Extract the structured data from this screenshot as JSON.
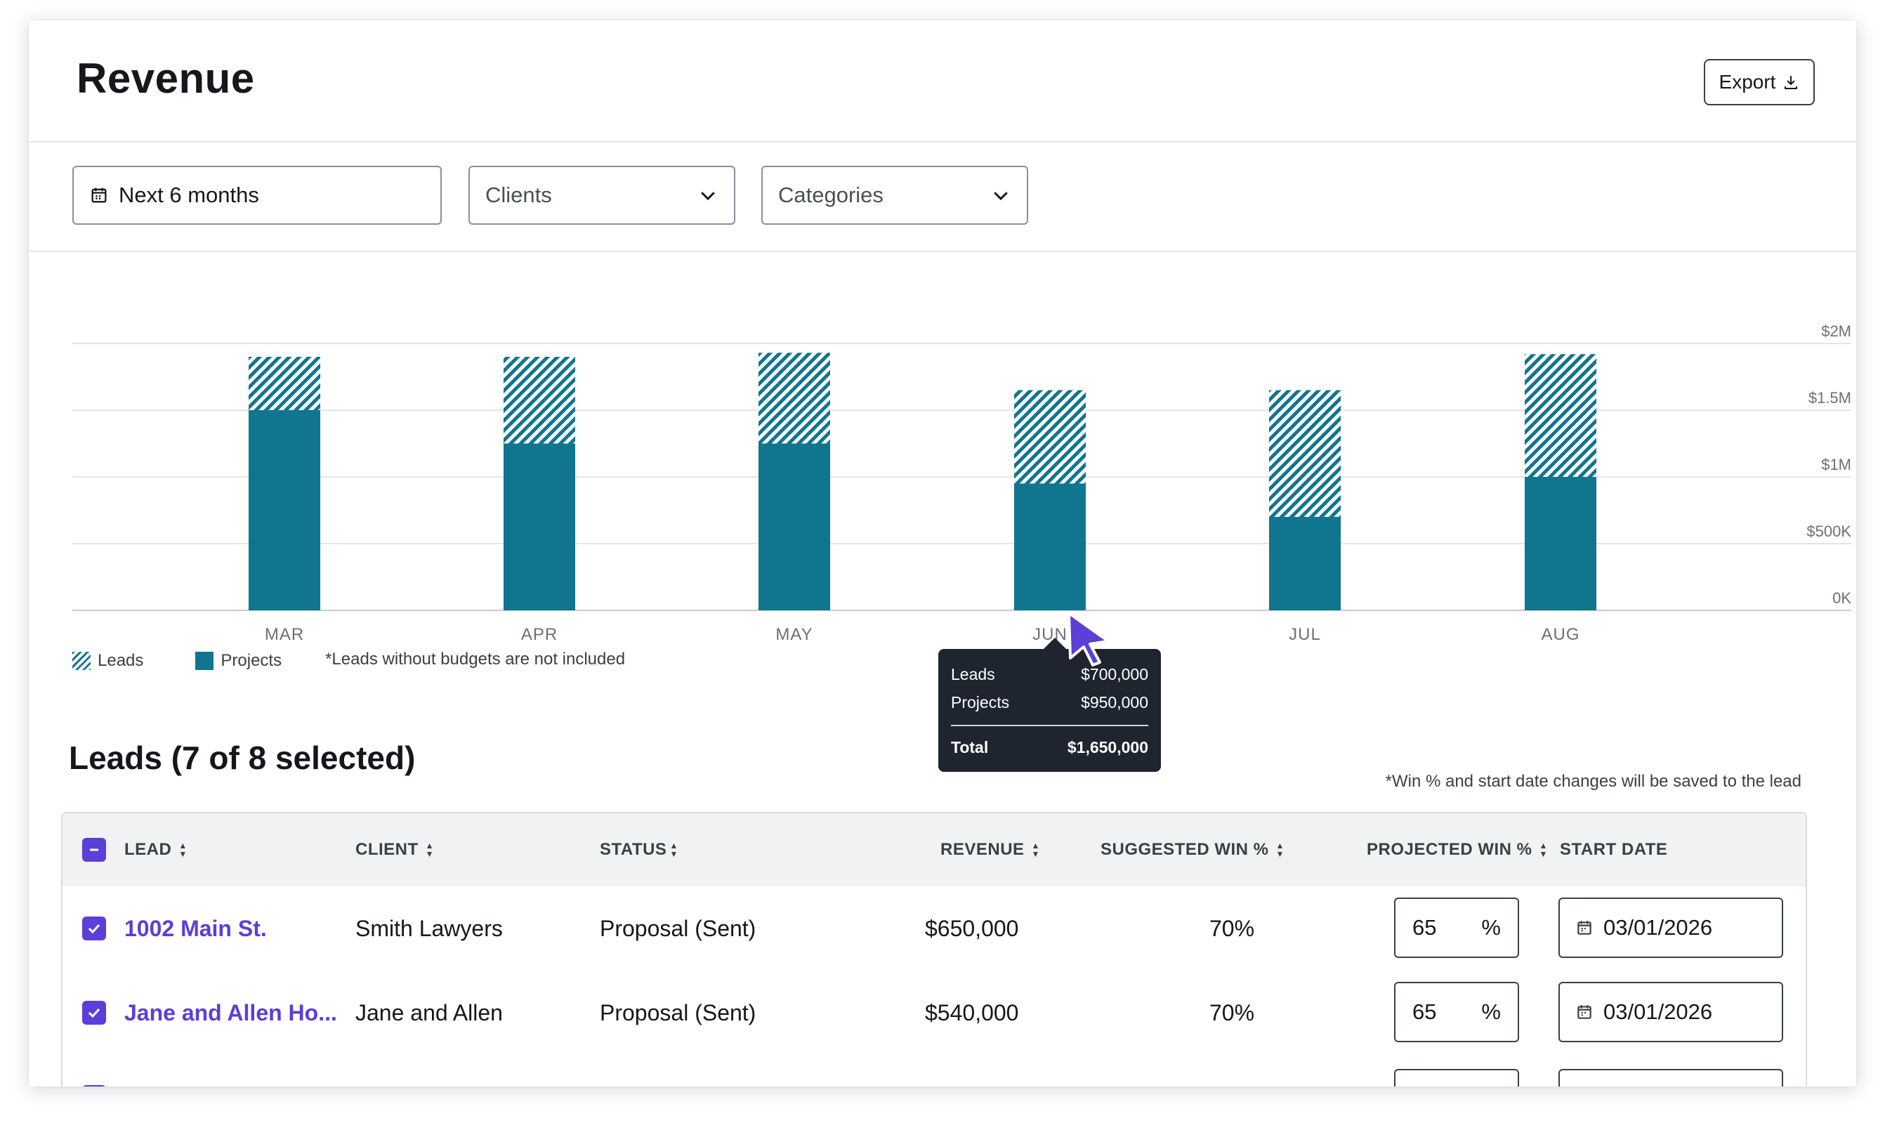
{
  "header": {
    "title": "Revenue",
    "export_label": "Export"
  },
  "filters": {
    "date_range": {
      "label": "Next 6 months",
      "icon": "calendar-icon"
    },
    "clients": {
      "placeholder": "Clients",
      "icon": "chevron-down-icon"
    },
    "categories": {
      "placeholder": "Categories",
      "icon": "chevron-down-icon"
    }
  },
  "chart_data": {
    "type": "bar",
    "stacked": true,
    "categories": [
      "MAR",
      "APR",
      "MAY",
      "JUN",
      "JUL",
      "AUG"
    ],
    "series": [
      {
        "name": "Projects",
        "color": "#10758f",
        "values": [
          1500000,
          1250000,
          1250000,
          950000,
          700000,
          1000000
        ]
      },
      {
        "name": "Leads",
        "color": "#10758f",
        "pattern": "diagonal-hatch",
        "values": [
          400000,
          650000,
          680000,
          700000,
          950000,
          920000
        ]
      }
    ],
    "y_ticks": [
      "$2M",
      "$1.5M",
      "$1M",
      "$500K",
      "0K"
    ],
    "ylim": [
      0,
      2000000
    ],
    "grid": true,
    "legend_position": "bottom-left"
  },
  "legend": {
    "leads_label": "Leads",
    "projects_label": "Projects",
    "footnote": "*Leads without budgets are not included"
  },
  "tooltip": {
    "leads_label": "Leads",
    "leads_value": "$700,000",
    "projects_label": "Projects",
    "projects_value": "$950,000",
    "total_label": "Total",
    "total_value": "$1,650,000"
  },
  "leads_section": {
    "title": "Leads (7 of 8 selected)",
    "note": "*Win % and start date changes will be saved to the lead"
  },
  "table": {
    "columns": [
      "LEAD",
      "CLIENT",
      "STATUS",
      "REVENUE",
      "SUGGESTED WIN %",
      "PROJECTED WIN %",
      "START DATE"
    ],
    "rows": [
      {
        "lead": "1002 Main St.",
        "client": "Smith Lawyers",
        "status": "Proposal (Sent)",
        "revenue": "$650,000",
        "suggested": "70%",
        "projected": "65",
        "unit": "%",
        "start_date": "03/01/2026",
        "checked": true
      },
      {
        "lead": "Jane and Allen Ho...",
        "client": "Jane and Allen",
        "status": "Proposal (Sent)",
        "revenue": "$540,000",
        "suggested": "70%",
        "projected": "65",
        "unit": "%",
        "start_date": "03/01/2026",
        "checked": true
      }
    ]
  }
}
